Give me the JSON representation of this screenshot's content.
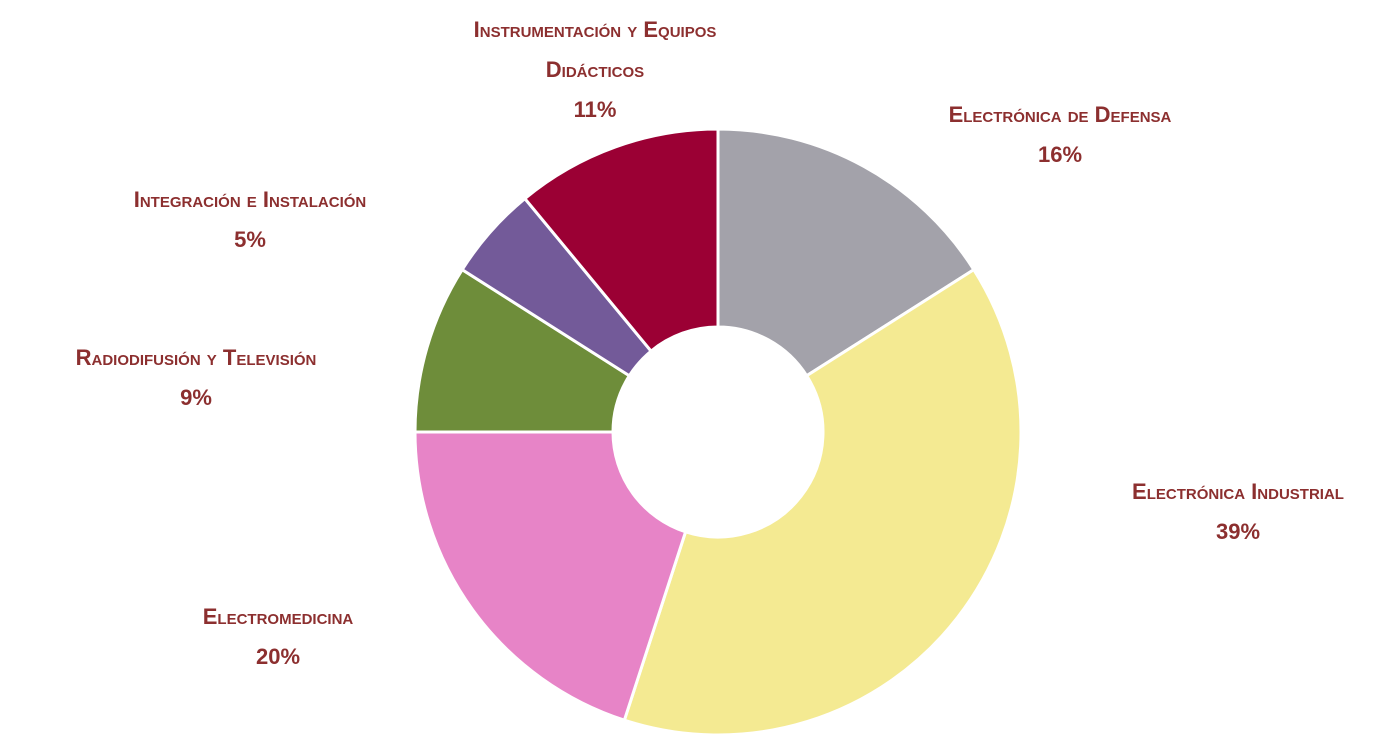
{
  "chart_data": {
    "type": "donut",
    "categories": [
      "Electrónica de Defensa",
      "Electrónica Industrial",
      "Electromedicina",
      "Radiodifusión y Televisión",
      "Integración e Instalación",
      "Instrumentación y Equipos Didácticos"
    ],
    "values": [
      16,
      39,
      20,
      9,
      5,
      11
    ],
    "value_labels": [
      "16%",
      "39%",
      "20%",
      "9%",
      "5%",
      "11%"
    ],
    "colors": [
      "#a3a2aa",
      "#f4ea92",
      "#e784c7",
      "#6e8d3a",
      "#735a99",
      "#9b0034"
    ]
  }
}
